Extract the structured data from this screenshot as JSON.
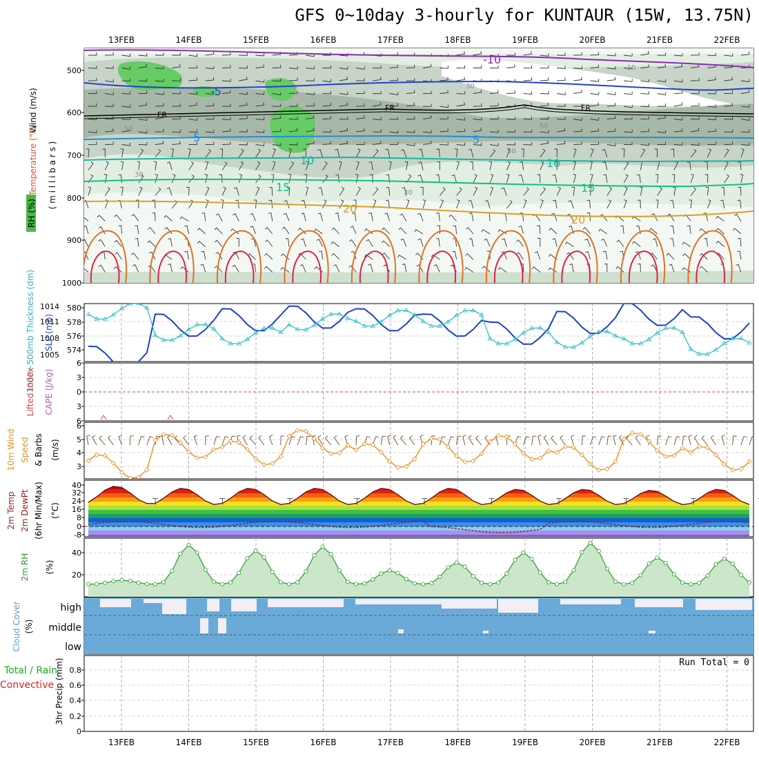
{
  "title": "GFS 0~10day 3-hourly for KUNTAUR (15W, 13.75N)",
  "dates": [
    "13FEB",
    "14FEB",
    "15FEB",
    "16FEB",
    "17FEB",
    "18FEB",
    "19FEB",
    "20FEB",
    "21FEB",
    "22FEB"
  ],
  "panels": {
    "upper": {
      "ylabel_wind": "Wind (m/s)",
      "ylabel_temp": "Temperature (°C)",
      "ylabel_mb": "( m i l l i b a r s )",
      "ylabel_rh": "RH (%)",
      "ticks": [
        "500",
        "600",
        "700",
        "800",
        "900",
        "1000"
      ],
      "labels": {
        "m10a": "-10",
        "m10b": "-10",
        "m5": "-5",
        "fr1": "FR",
        "fr2": "FR",
        "fr3": "FR",
        "p5a": "5",
        "p5b": "5",
        "p10a": "10",
        "p10b": "10",
        "p15a": "15",
        "p15b": "15",
        "p20a": "20",
        "p20b": "20",
        "rh30a": "30",
        "rh30b": "30",
        "rh30c": "30",
        "rh50a": "50",
        "rh50b": "50",
        "rh50c": "50"
      }
    },
    "thickness": {
      "ylabel_left": "1000~500mb Thickness (dm)",
      "ylabel_right": "SLP (mb)",
      "ticks_left": [
        "580",
        "578",
        "576",
        "574"
      ],
      "ticks_right": [
        "1014",
        "1011",
        "1008",
        "1005"
      ]
    },
    "cape": {
      "ylabel_lifted": "Lifted Index",
      "ylabel_cape": "CAPE (J/kg)",
      "ticks": [
        "6",
        "3",
        "0",
        "3",
        "6"
      ]
    },
    "wind10": {
      "ylabel_a": "10m Wind",
      "ylabel_b": "Speed",
      "ylabel_c": "& Barbs",
      "ylabel_d": "(m/s)",
      "ticks": [
        "6",
        "5",
        "4",
        "3"
      ]
    },
    "temp2m": {
      "ylabel_a": "2m Temp",
      "ylabel_b": "2m DewPt",
      "ylabel_c": "(6hr Min/Max)",
      "ylabel_d": "(°C)",
      "ticks": [
        "40",
        "32",
        "24",
        "16",
        "8",
        "0",
        "-8"
      ]
    },
    "rh2m": {
      "ylabel_a": "2m RH",
      "ylabel_b": "(%)",
      "ticks": [
        "40",
        "20"
      ]
    },
    "cloud": {
      "ylabel": "Cloud Cover",
      "ylabel_b": "(%)",
      "ticks": [
        "high",
        "middle",
        "low"
      ]
    },
    "precip": {
      "ylabel_a": "Total / Rain",
      "ylabel_b": "Convective",
      "ylabel_c": "3hr Precip (mm)",
      "run_total": "Run Total = 0",
      "ticks": [
        "0.8",
        "0.6",
        "0.4",
        "0.2",
        "0"
      ]
    }
  },
  "colors": {
    "slp": "#1a3fd0",
    "thickness": "#30c0c8",
    "wind_speed": "#e89020",
    "temp": "#8a2020",
    "dewpt": "#c06070",
    "rh_line": "#2a9a2a",
    "cloud": "#6aaad8",
    "precip_total": "#1aaa1a",
    "precip_conv": "#e02020"
  },
  "chart_data": [
    {
      "type": "line",
      "name": "mean sea level pressure and 1000-500mb thickness",
      "x": [
        "13FEB",
        "14FEB",
        "15FEB",
        "16FEB",
        "17FEB",
        "18FEB",
        "19FEB",
        "20FEB",
        "21FEB",
        "22FEB"
      ],
      "series": [
        {
          "name": "SLP (mb)",
          "values": [
            1004.5,
            1010.5,
            1011.5,
            1012.0,
            1011.5,
            1010.5,
            1009.0,
            1011.0,
            1012.5,
            1010.0
          ]
        },
        {
          "name": "1000~500mb Thickness (dm)",
          "values": [
            579.5,
            576.5,
            576.0,
            578.0,
            578.5,
            578.5,
            576.0,
            575.5,
            576.0,
            574.5
          ]
        }
      ]
    },
    {
      "type": "line",
      "name": "10m wind speed",
      "x": [
        "13FEB",
        "14FEB",
        "15FEB",
        "16FEB",
        "17FEB",
        "18FEB",
        "19FEB",
        "20FEB",
        "21FEB",
        "22FEB"
      ],
      "series": [
        {
          "name": "Speed (m/s)",
          "values": [
            3.0,
            4.5,
            4.0,
            4.8,
            3.8,
            4.2,
            4.4,
            3.6,
            4.6,
            3.6
          ]
        }
      ],
      "ylim": [
        2,
        6
      ]
    },
    {
      "type": "line",
      "name": "2m RH",
      "x": [
        "13FEB",
        "14FEB",
        "15FEB",
        "16FEB",
        "17FEB",
        "18FEB",
        "19FEB",
        "20FEB",
        "21FEB",
        "22FEB"
      ],
      "series": [
        {
          "name": "2m RH (%)",
          "values": [
            12,
            48,
            42,
            46,
            22,
            30,
            40,
            50,
            35,
            34
          ]
        }
      ],
      "ylim": [
        0,
        55
      ]
    },
    {
      "type": "area",
      "name": "2m temperature",
      "x": [
        "13FEB",
        "14FEB",
        "15FEB",
        "16FEB",
        "17FEB",
        "18FEB",
        "19FEB",
        "20FEB",
        "21FEB",
        "22FEB"
      ],
      "series": [
        {
          "name": "2m Temp max (°C)",
          "values": [
            39,
            37,
            37,
            37,
            37,
            37,
            36,
            36,
            35,
            36
          ]
        },
        {
          "name": "2m Temp min (°C)",
          "values": [
            22,
            21,
            21,
            21,
            21,
            21,
            21,
            21,
            21,
            21
          ]
        }
      ],
      "ylim": [
        -8,
        40
      ]
    },
    {
      "type": "bar",
      "name": "3hr precip",
      "x": [
        "13FEB",
        "14FEB",
        "15FEB",
        "16FEB",
        "17FEB",
        "18FEB",
        "19FEB",
        "20FEB",
        "21FEB",
        "22FEB"
      ],
      "series": [
        {
          "name": "Total",
          "values": [
            0,
            0,
            0,
            0,
            0,
            0,
            0,
            0,
            0,
            0
          ]
        }
      ],
      "ylim": [
        0,
        1
      ]
    }
  ]
}
